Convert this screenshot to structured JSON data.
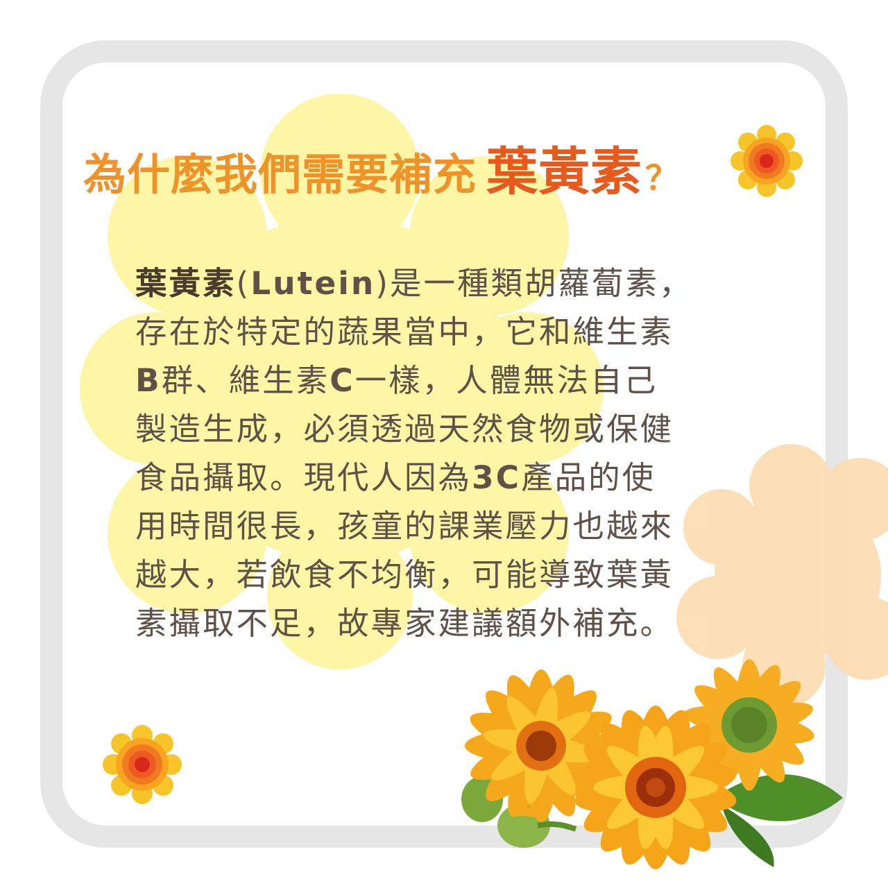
{
  "heading": {
    "prefix": "為什麼我們需要補充",
    "highlight": "葉黃素",
    "suffix": "？"
  },
  "paragraph": {
    "lines": [
      {
        "parts": [
          "葉黃素",
          "(",
          "Lutein",
          ")是一種類胡蘿蔔素，"
        ]
      },
      {
        "text": "存在於特定的蔬果當中，它和維生素"
      },
      {
        "parts": [
          "B",
          "群、維生素",
          "C",
          "一樣，人體無法自己"
        ]
      },
      {
        "text": "製造生成，必須透過天然食物或保健"
      },
      {
        "parts": [
          "食品攝取。現代人因為",
          "3C",
          "產品的使"
        ]
      },
      {
        "text": "用時間很長，孩童的課業壓力也越來"
      },
      {
        "text": "越大，若飲食不均衡，可能導致葉黃"
      },
      {
        "text": "素攝取不足，故專家建議額外補充。"
      }
    ]
  },
  "colors": {
    "title_orange": "#f0922a",
    "title_red": "#e65a1e",
    "text_brown": "#5f5148",
    "frame_grey": "#e6e6e6",
    "pale_yellow_flower": "#fdf6a6",
    "peach_flower": "#fddcb0"
  }
}
